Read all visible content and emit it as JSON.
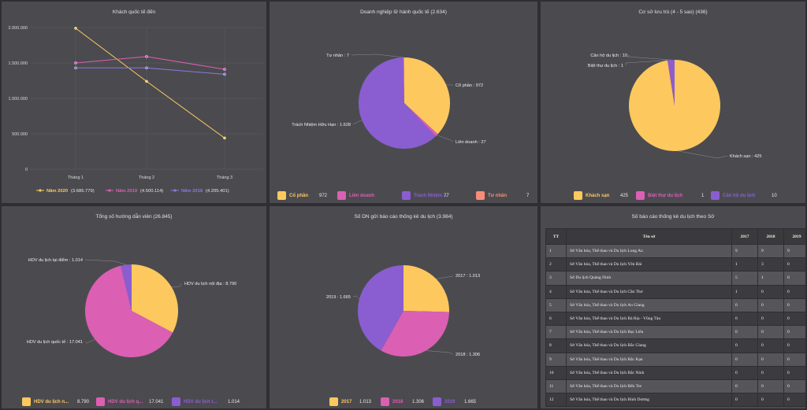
{
  "colors": {
    "yellow": "#fdc85e",
    "pink": "#db5fb3",
    "purple": "#8a5ed0",
    "salmon": "#f68d78",
    "lavender": "#8c78e0"
  },
  "panels": {
    "visitors": {
      "title": "Khách quốc tế đến"
    },
    "agencies": {
      "title": "Doanh nghiệp lữ hành quốc tế (2.634)"
    },
    "lodging": {
      "title": "Cơ sở lưu trú (4 - 5 sao) (436)"
    },
    "guides": {
      "title": "Tổng số hướng dẫn viên (26.845)"
    },
    "reports": {
      "title": "Số DN gửi báo cáo thống kê du lịch (3.984)"
    },
    "dept": {
      "title": "Số báo cáo thống kê du lịch theo Sở"
    }
  },
  "chart_data": [
    {
      "id": "visitors",
      "type": "line",
      "title": "Khách quốc tế đến",
      "categories": [
        "Tháng 1",
        "Tháng 2",
        "Tháng 3"
      ],
      "yticks": [
        "0",
        "500.000",
        "1.000.000",
        "1.500.000",
        "2.000.000"
      ],
      "ylim": [
        0,
        2000000
      ],
      "series": [
        {
          "name": "Năm 2020",
          "total": "(3.686.779)",
          "color": "#fdc85e",
          "values": [
            1990000,
            1240000,
            440000
          ]
        },
        {
          "name": "Năm 2019",
          "total": "(4.500.114)",
          "color": "#db5fb3",
          "values": [
            1500000,
            1590000,
            1410000
          ]
        },
        {
          "name": "Năm 2018",
          "total": "(4.205.401)",
          "color": "#8c78e0",
          "values": [
            1430000,
            1430000,
            1340000
          ]
        }
      ]
    },
    {
      "id": "agencies",
      "type": "pie",
      "title": "Doanh nghiệp lữ hành quốc tế (2.634)",
      "slices": [
        {
          "label": "Cổ phần",
          "value": 972,
          "color": "#fdc85e",
          "text": "Cổ phần : 972"
        },
        {
          "label": "Liên doanh",
          "value": 27,
          "color": "#db5fb3",
          "text": "Liên doanh : 27"
        },
        {
          "label": "Trách Nhiệm Hữu Hạn",
          "value": 1628,
          "color": "#8a5ed0",
          "text": "Trách Nhiệm Hữu Hạn : 1.628",
          "legend": "Trách Nhiệm ..."
        },
        {
          "label": "Tư nhân",
          "value": 7,
          "color": "#f68d78",
          "text": "Tư nhân : 7"
        }
      ]
    },
    {
      "id": "lodging",
      "type": "pie",
      "title": "Cơ sở lưu trú (4 - 5 sao) (436)",
      "slices": [
        {
          "label": "Khách sạn",
          "value": 425,
          "color": "#fdc85e",
          "text": "Khách sạn : 425"
        },
        {
          "label": "Biệt thự du lịch",
          "value": 1,
          "color": "#db5fb3",
          "text": "Biệt thự du lịch : 1"
        },
        {
          "label": "Căn hộ du lịch",
          "value": 10,
          "color": "#8a5ed0",
          "text": "Căn hộ du lịch : 10"
        }
      ]
    },
    {
      "id": "guides",
      "type": "pie",
      "title": "Tổng số hướng dẫn viên (26.845)",
      "slices": [
        {
          "label": "HDV du lịch nội địa",
          "value": 8790,
          "color": "#fdc85e",
          "text": "HDV du lịch nội địa : 8.790",
          "legend": "HDV du lịch n..."
        },
        {
          "label": "HDV du lịch quốc tế",
          "value": 17041,
          "color": "#db5fb3",
          "text": "HDV du lịch quốc tế : 17.041",
          "legend": "HDV du lịch q..."
        },
        {
          "label": "HDV du lịch tại điểm",
          "value": 1014,
          "color": "#8a5ed0",
          "text": "HDV du lịch tại điểm : 1.014",
          "legend": "HDV du lịch t..."
        }
      ]
    },
    {
      "id": "reports",
      "type": "pie",
      "title": "Số DN gửi báo cáo thống kê du lịch (3.984)",
      "slices": [
        {
          "label": "2017",
          "value": 1013,
          "color": "#fdc85e",
          "text": "2017 : 1.013"
        },
        {
          "label": "2018",
          "value": 1306,
          "color": "#db5fb3",
          "text": "2018 : 1.306"
        },
        {
          "label": "2019",
          "value": 1665,
          "color": "#8a5ed0",
          "text": "2019 : 1.665"
        }
      ]
    }
  ],
  "table": {
    "headers": [
      "TT",
      "Tên sở",
      "2017",
      "2018",
      "2019"
    ],
    "rows": [
      [
        "1",
        "Sở Văn hóa, Thể thao và Du lịch Long An",
        "9",
        "9",
        "9"
      ],
      [
        "2",
        "Sở Văn hóa, Thể thao và Du lịch Yên Bái",
        "1",
        "3",
        "0"
      ],
      [
        "3",
        "Sở Du lịch Quảng Ninh",
        "5",
        "1",
        "0"
      ],
      [
        "4",
        "Sở Văn hóa, Thể thao và Du lịch Cần Thơ",
        "1",
        "0",
        "0"
      ],
      [
        "5",
        "Sở Văn hóa, Thể thao và Du lịch An Giang",
        "0",
        "0",
        "0"
      ],
      [
        "6",
        "Sở Văn hóa, Thể thao và Du lịch Bà Rịa - Vũng Tàu",
        "0",
        "0",
        "0"
      ],
      [
        "7",
        "Sở Văn hóa, Thể thao và Du lịch Bạc Liêu",
        "0",
        "0",
        "0"
      ],
      [
        "8",
        "Sở Văn hóa, Thể thao và Du lịch Bắc Giang",
        "0",
        "0",
        "0"
      ],
      [
        "9",
        "Sở Văn hóa, Thể thao và Du lịch Bắc Kạn",
        "0",
        "0",
        "0"
      ],
      [
        "10",
        "Sở Văn hóa, Thể thao và Du lịch Bắc Ninh",
        "0",
        "0",
        "0"
      ],
      [
        "11",
        "Sở Văn hóa, Thể thao và Du lịch Bến Tre",
        "0",
        "0",
        "0"
      ],
      [
        "12",
        "Sở Văn hóa, Thể thao và Du lịch Bình Dương",
        "0",
        "0",
        "0"
      ]
    ]
  }
}
